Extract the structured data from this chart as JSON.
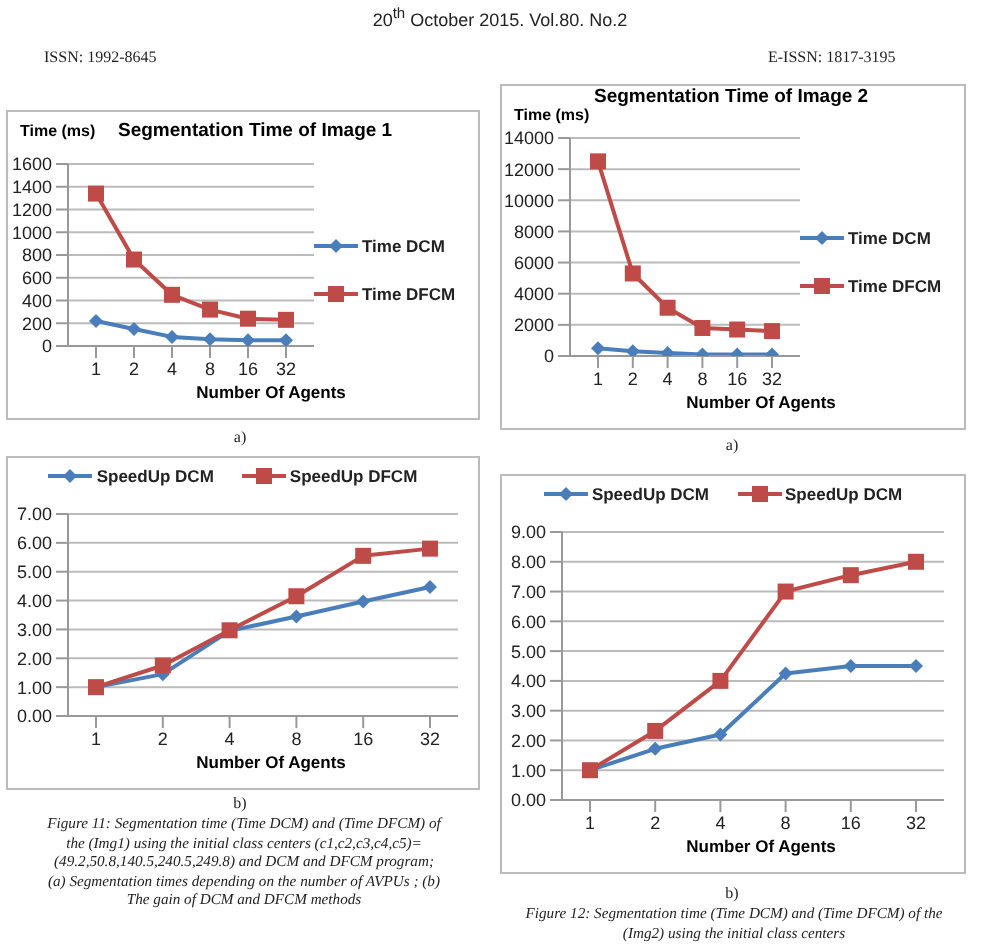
{
  "chart_data": [
    {
      "type": "line",
      "title": "Segmentation Time of Image 1",
      "ylabel": "Time (ms)",
      "xlabel": "Number Of Agents",
      "categories": [
        "1",
        "2",
        "4",
        "8",
        "16",
        "32"
      ],
      "series": [
        {
          "name": "Time DCM",
          "color": "#4a7ebb",
          "marker": "diamond",
          "values": [
            220,
            150,
            80,
            60,
            50,
            50
          ]
        },
        {
          "name": "Time DFCM",
          "color": "#be4b48",
          "marker": "square",
          "values": [
            1340,
            760,
            450,
            320,
            240,
            230
          ]
        }
      ],
      "ylim": [
        0,
        1600
      ],
      "yticks": [
        0,
        200,
        400,
        600,
        800,
        1000,
        1200,
        1400,
        1600
      ],
      "grid": "y",
      "legend": "right",
      "annotations": [
        "20$^{th}$ October 2015. Vol.80. No.2",
        "ISSN: 1992-8645",
        "E-ISSN: 1817-3195",
        "a)"
      ]
    },
    {
      "type": "line",
      "title": "Segmentation Time of Image 2",
      "ylabel": "Time (ms)",
      "xlabel": "Number Of Agents",
      "categories": [
        "1",
        "2",
        "4",
        "8",
        "16",
        "32"
      ],
      "series": [
        {
          "name": "Time DCM",
          "color": "#4a7ebb",
          "marker": "diamond",
          "values": [
            500,
            300,
            200,
            100,
            100,
            100
          ]
        },
        {
          "name": "Time DFCM",
          "color": "#be4b48",
          "marker": "square",
          "values": [
            12500,
            5300,
            3100,
            1800,
            1700,
            1600
          ]
        }
      ],
      "ylim": [
        0,
        14000
      ],
      "yticks": [
        0,
        2000,
        4000,
        6000,
        8000,
        10000,
        12000,
        14000
      ],
      "grid": "y",
      "legend": "right",
      "annotations": [
        "a)"
      ]
    },
    {
      "type": "line",
      "xlabel": "Number Of Agents",
      "categories": [
        "1",
        "2",
        "4",
        "8",
        "16",
        "32"
      ],
      "series": [
        {
          "name": "SpeedUp DCM",
          "color": "#4a7ebb",
          "marker": "diamond",
          "values": [
            1,
            1.45,
            2.95,
            3.45,
            3.97,
            4.47
          ]
        },
        {
          "name": "SpeedUp DFCM",
          "color": "#be4b48",
          "marker": "square",
          "values": [
            1,
            1.75,
            2.97,
            4.15,
            5.55,
            5.8
          ]
        }
      ],
      "ylim": [
        0,
        7
      ],
      "yticks": [
        {
          "value": 0,
          "label": "0.00"
        },
        {
          "value": 1,
          "label": "1.00"
        },
        {
          "value": 2,
          "label": "2.00"
        },
        {
          "value": 3,
          "label": "3.00"
        },
        {
          "value": 4,
          "label": "4.00"
        },
        {
          "value": 5,
          "label": "5.00"
        },
        {
          "value": 6,
          "label": "6.00"
        },
        {
          "value": 7,
          "label": "7.00"
        }
      ],
      "grid": "y",
      "legend": "top",
      "annotations": [
        "b)",
        "Figure 11: Segmentation time (Time DCM)  and (Time DFCM) of the (Img1) using the initial class centers (c1,c2,c3,c4,c5)=(49.2,50.8,140.5,240.5,249.8) and DCM and DFCM program; (a) Segmentation times depending on the number of AVPUs  ; (b) The gain of  DCM and DFCM methods"
      ]
    },
    {
      "type": "line",
      "xlabel": "Number Of Agents",
      "categories": [
        "1",
        "2",
        "4",
        "8",
        "16",
        "32"
      ],
      "series": [
        {
          "name": "SpeedUp DCM",
          "color": "#4a7ebb",
          "marker": "diamond",
          "values": [
            1,
            1.72,
            2.2,
            4.25,
            4.5,
            4.5
          ]
        },
        {
          "name": "SpeedUp DCM",
          "color": "#be4b48",
          "marker": "square",
          "values": [
            1,
            2.32,
            4,
            7,
            7.55,
            8
          ]
        }
      ],
      "ylim": [
        0,
        9
      ],
      "yticks": [
        {
          "value": 0,
          "label": "0.00"
        },
        {
          "value": 1,
          "label": "1.00"
        },
        {
          "value": 2,
          "label": "2.00"
        },
        {
          "value": 3,
          "label": "3.00"
        },
        {
          "value": 4,
          "label": "4.00"
        },
        {
          "value": 5,
          "label": "5.00"
        },
        {
          "value": 6,
          "label": "6.00"
        },
        {
          "value": 7,
          "label": "7.00"
        },
        {
          "value": 8,
          "label": "8.00"
        },
        {
          "value": 9,
          "label": "9.00"
        }
      ],
      "grid": "y",
      "legend": "top",
      "annotations": [
        "b)",
        "Figure 12: Segmentation time (Time DCM) and (Time DFCM) of the (Img2) using the initial class centers"
      ]
    }
  ]
}
